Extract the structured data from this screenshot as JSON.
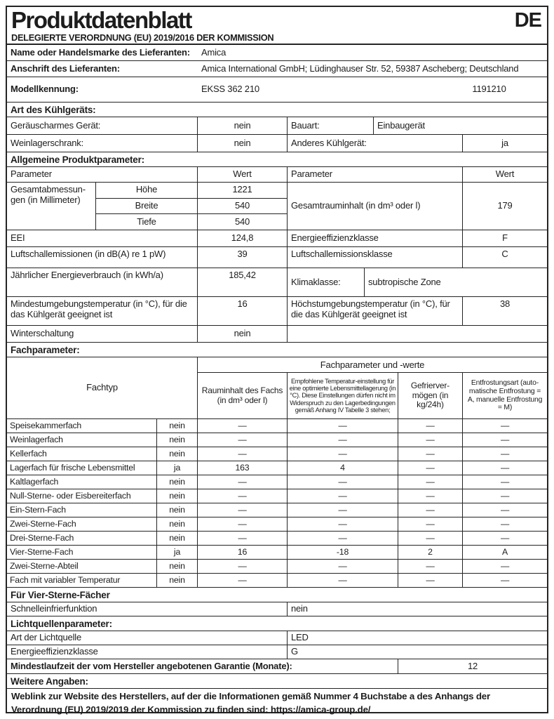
{
  "header": {
    "title": "Produktdatenblatt",
    "language_code": "DE",
    "regulation": "DELEGIERTE VERORDNUNG (EU) 2019/2016 DER KOMMISSION"
  },
  "supplier": {
    "name_label": "Name oder Handelsmarke des Lieferanten:",
    "name_value": "Amica",
    "address_label": "Anschrift des Lieferanten:",
    "address_value": "Amica International GmbH; Lüdinghauser Str. 52, 59387 Ascheberg; Deutschland",
    "model_label": "Modellkennung:",
    "model_value": "EKSS 362 210",
    "model_number": "1191210"
  },
  "type_section": {
    "title": "Art des Kühlgeräts:",
    "row1": {
      "label": "Geräuscharmes Gerät:",
      "value": "nein",
      "label2": "Bauart:",
      "value2": "Einbaugerät"
    },
    "row2": {
      "label": "Weinlagerschrank:",
      "value": "nein",
      "label2": "Anderes Kühlgerät:",
      "value2": "ja"
    }
  },
  "general": {
    "title": "Allgemeine Produktparameter:",
    "col_param_left": "Parameter",
    "col_value_left": "Wert",
    "col_param_right": "Parameter",
    "col_value_right": "Wert",
    "dimensions": {
      "label": "Gesamtabmessun-\ngen (in Millimeter)",
      "height_label": "Höhe",
      "height_value": "1221",
      "width_label": "Breite",
      "width_value": "540",
      "depth_label": "Tiefe",
      "depth_value": "540"
    },
    "volume": {
      "label": "Gesamtrauminhalt (in dm³ oder l)",
      "value": "179"
    },
    "eei": {
      "label": "EEI",
      "value": "124,8",
      "label2": "Energieeffizienzklasse",
      "value2": "F"
    },
    "noise": {
      "label": "Luftschallemissionen (in dB(A) re 1 pW)",
      "value": "39",
      "label2": "Luftschallemissionsklasse",
      "value2": "C"
    },
    "energy": {
      "label": "Jährlicher Energieverbrauch (in kWh/a)",
      "value": "185,42",
      "label2": "Klimaklasse:",
      "value2": "subtropische Zone"
    },
    "temperature": {
      "label": "Mindestumgebungstemperatur (in °C), für die das Kühlgerät geeignet ist",
      "value": "16",
      "label2": "Höchstumgebungstemperatur (in °C), für die das Kühlgerät geeignet ist",
      "value2": "38"
    },
    "winter": {
      "label": "Winterschaltung",
      "value": "nein"
    }
  },
  "compartments": {
    "title": "Fachparameter:",
    "group_header": "Fachparameter und -werte",
    "col_type": "Fachtyp",
    "col_volume": "Rauminhalt des Fachs (in dm³ oder l)",
    "col_temp": "Empfohlene Temperatur-einstellung für eine optimierte Lebensmittella­gerung (in °C). Diese Einstellungen dürfen nicht im Widerspruch zu den Lagerbedingungen gemäß Anhang IV Tabelle 3 stehen;",
    "col_freeze": "Gefrierver­mögen (in kg/24h)",
    "col_defrost": "Entfrostungsart (auto­matische Entfrostung = A, manuelle Entfros­tung = M)",
    "rows": [
      {
        "label": "Speisekammerfach",
        "present": "nein",
        "volume": "—",
        "temp": "—",
        "freeze": "—",
        "defrost": "—"
      },
      {
        "label": "Weinlagerfach",
        "present": "nein",
        "volume": "—",
        "temp": "—",
        "freeze": "—",
        "defrost": "—"
      },
      {
        "label": "Kellerfach",
        "present": "nein",
        "volume": "—",
        "temp": "—",
        "freeze": "—",
        "defrost": "—"
      },
      {
        "label": "Lagerfach für frische Lebensmittel",
        "present": "ja",
        "volume": "163",
        "temp": "4",
        "freeze": "—",
        "defrost": "—"
      },
      {
        "label": "Kaltlagerfach",
        "present": "nein",
        "volume": "—",
        "temp": "—",
        "freeze": "—",
        "defrost": "—"
      },
      {
        "label": "Null-Sterne- oder Eisbereiterfach",
        "present": "nein",
        "volume": "—",
        "temp": "—",
        "freeze": "—",
        "defrost": "—"
      },
      {
        "label": "Ein-Stern-Fach",
        "present": "nein",
        "volume": "—",
        "temp": "—",
        "freeze": "—",
        "defrost": "—"
      },
      {
        "label": "Zwei-Sterne-Fach",
        "present": "nein",
        "volume": "—",
        "temp": "—",
        "freeze": "—",
        "defrost": "—"
      },
      {
        "label": "Drei-Sterne-Fach",
        "present": "nein",
        "volume": "—",
        "temp": "—",
        "freeze": "—",
        "defrost": "—"
      },
      {
        "label": "Vier-Sterne-Fach",
        "present": "ja",
        "volume": "16",
        "temp": "-18",
        "freeze": "2",
        "defrost": "A"
      },
      {
        "label": "Zwei-Sterne-Abteil",
        "present": "nein",
        "volume": "—",
        "temp": "—",
        "freeze": "—",
        "defrost": "—"
      },
      {
        "label": "Fach mit variabler Temperatur",
        "present": "nein",
        "volume": "—",
        "temp": "—",
        "freeze": "—",
        "defrost": "—"
      }
    ]
  },
  "four_star": {
    "title": "Für Vier-Sterne-Fächer",
    "fast_freeze_label": "Schnelleinfrierfunktion",
    "fast_freeze_value": "nein"
  },
  "light": {
    "title": "Lichtquellenparameter:",
    "type_label": "Art der Lichtquelle",
    "type_value": "LED",
    "class_label": "Energieeffizienzklasse",
    "class_value": "G"
  },
  "warranty": {
    "label": "Mindestlaufzeit der vom Hersteller angebotenen Garantie (Monate):",
    "value": "12"
  },
  "additional": {
    "title": "Weitere Angaben:",
    "text": "Weblink zur Website des Herstellers, auf der die Informationen gemäß Nummer 4 Buchstabe a des Anhangs der Verordnung (EU) 2019/2019 der Kommission zu finden sind: https://amica-group.de/"
  }
}
